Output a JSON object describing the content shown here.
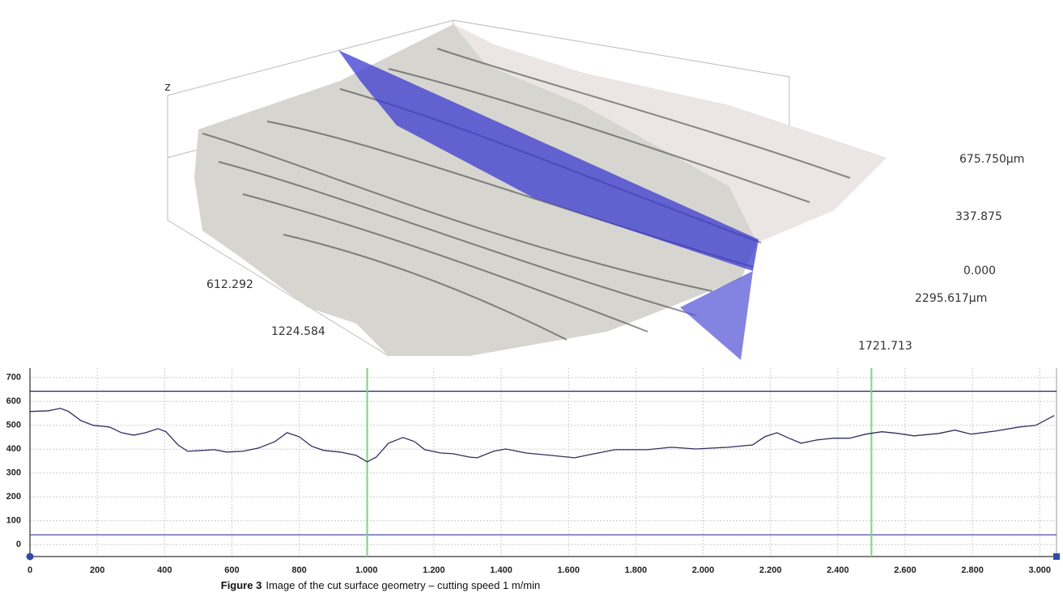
{
  "chart_data": [
    {
      "type": "surface3d",
      "z_label": "z",
      "zticks": [
        {
          "value": 675.75,
          "label": "675.750µm"
        },
        {
          "value": 337.875,
          "label": "337.875"
        },
        {
          "value": 0,
          "label": "0.000"
        }
      ],
      "xticks": [
        612.292,
        1224.584
      ],
      "yticks": [
        {
          "value": 2295.617,
          "label": "2295.617µm"
        },
        1721.713
      ]
    },
    {
      "type": "line",
      "x": [
        0,
        55,
        91,
        115,
        151,
        188,
        236,
        272,
        308,
        344,
        380,
        404,
        440,
        469,
        512,
        548,
        584,
        632,
        680,
        728,
        764,
        800,
        837,
        873,
        921,
        969,
        1002,
        1029,
        1065,
        1108,
        1142,
        1173,
        1221,
        1257,
        1305,
        1329,
        1377,
        1413,
        1474,
        1546,
        1618,
        1666,
        1738,
        1834,
        1906,
        1978,
        2075,
        2147,
        2183,
        2219,
        2255,
        2291,
        2339,
        2387,
        2435,
        2483,
        2531,
        2579,
        2627,
        2700,
        2748,
        2796,
        2868,
        2940,
        2988,
        3043
      ],
      "series": [
        {
          "color": "#2e2e5e",
          "values": [
            558,
            561,
            571,
            558,
            520,
            500,
            493,
            469,
            459,
            469,
            486,
            473,
            418,
            391,
            395,
            398,
            388,
            391,
            405,
            432,
            469,
            452,
            412,
            395,
            388,
            374,
            347,
            367,
            425,
            449,
            432,
            398,
            384,
            381,
            367,
            364,
            391,
            401,
            384,
            374,
            364,
            378,
            398,
            398,
            408,
            401,
            408,
            418,
            452,
            469,
            446,
            425,
            439,
            446,
            446,
            463,
            473,
            466,
            456,
            466,
            480,
            463,
            476,
            493,
            500,
            541
          ]
        }
      ],
      "hlines": [
        {
          "value": 643,
          "color": "#1f2060"
        },
        {
          "value": 41,
          "color": "#4a4ab0"
        }
      ],
      "vlines": [
        {
          "value": 1002,
          "color": "#7fd67f"
        },
        {
          "value": 2500,
          "color": "#7fd67f"
        }
      ],
      "xlim": [
        0,
        3045
      ],
      "ylim": [
        -50,
        740
      ],
      "xticks": [
        0,
        200,
        400,
        600,
        800,
        {
          "value": 1000,
          "label": "1.000"
        },
        {
          "value": 1200,
          "label": "1.200"
        },
        {
          "value": 1400,
          "label": "1.400"
        },
        {
          "value": 1600,
          "label": "1.600"
        },
        {
          "value": 1800,
          "label": "1.800"
        },
        {
          "value": 2000,
          "label": "2.000"
        },
        {
          "value": 2200,
          "label": "2.200"
        },
        {
          "value": 2400,
          "label": "2.400"
        },
        {
          "value": 2600,
          "label": "2.600"
        },
        {
          "value": 2800,
          "label": "2.800"
        },
        {
          "value": 3000,
          "label": "3.000"
        }
      ],
      "yticks": [
        0,
        100,
        200,
        300,
        400,
        500,
        600,
        700
      ],
      "grid": true
    }
  ],
  "caption": {
    "label": "Figure 3",
    "text": "Image of the cut surface geometry – cutting speed 1 m/min"
  }
}
